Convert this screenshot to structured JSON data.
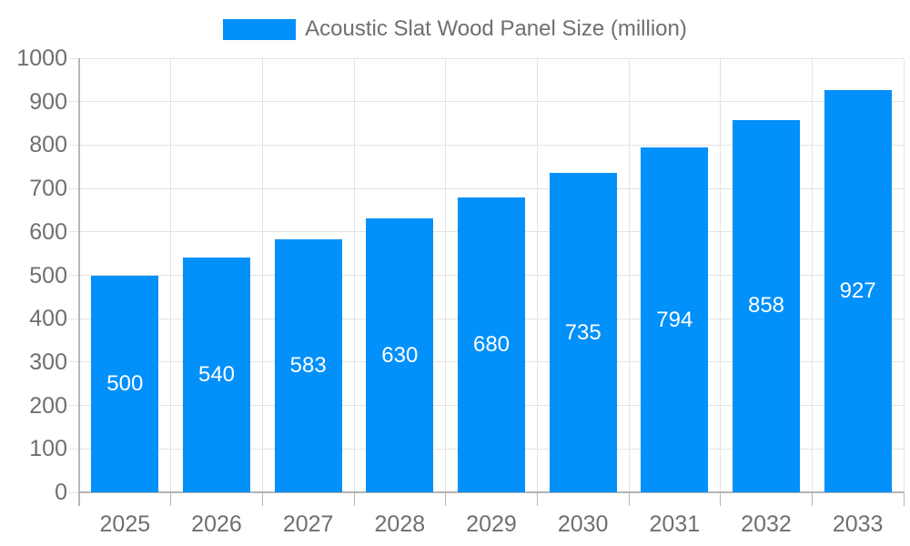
{
  "chart_data": {
    "type": "bar",
    "title": "Acoustic Slat Wood Panel Size (million)",
    "legend": [
      "Acoustic Slat Wood Panel Size (million)"
    ],
    "legend_position": "top-center",
    "categories": [
      "2025",
      "2026",
      "2027",
      "2028",
      "2029",
      "2030",
      "2031",
      "2032",
      "2033"
    ],
    "values": [
      500,
      540,
      583,
      630,
      680,
      735,
      794,
      858,
      927
    ],
    "value_labels_shown": true,
    "xlabel": "",
    "ylabel": "",
    "ylim": [
      0,
      1000
    ],
    "ytick_step": 100,
    "ytick_labels": [
      "0",
      "100",
      "200",
      "300",
      "400",
      "500",
      "600",
      "700",
      "800",
      "900",
      "1000"
    ],
    "grid": true,
    "colors": {
      "bar": "#0290fa",
      "value_label": "#ffffff",
      "tick_label": "#6f6f6f",
      "axis_line": "#b5b5b5",
      "gridline": "#e3e3e3",
      "background": "#ffffff"
    }
  }
}
